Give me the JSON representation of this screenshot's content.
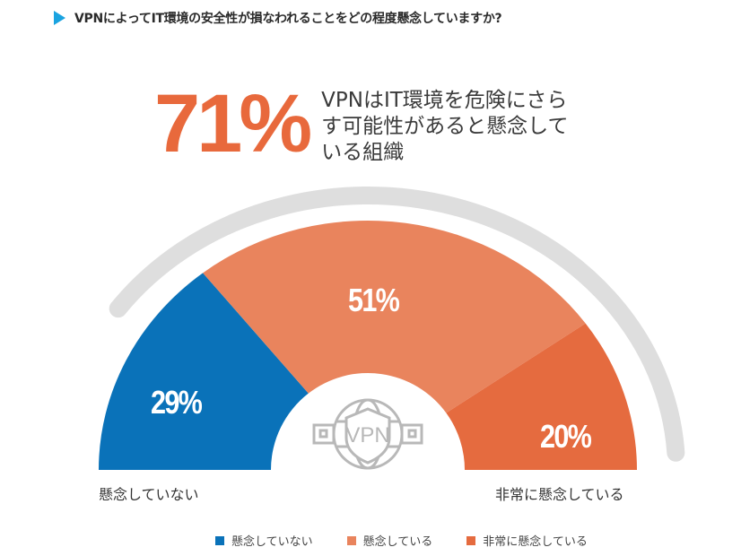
{
  "header": {
    "title": "VPNによってIT環境の安全性が損なわれることをどの程度懸念していますか?",
    "accent_color": "#1aa3e0"
  },
  "headline": {
    "percent": "71%",
    "description": "VPNはIT環境を危険にさらす可能性があると懸念している組織",
    "color": "#e8693c"
  },
  "labels": {
    "left": "懸念していない",
    "right": "非常に懸念している"
  },
  "center_icon": {
    "name": "vpn-globe-shield-icon",
    "text": "VPN"
  },
  "legend": [
    {
      "label": "懸念していない",
      "color": "#0a72b9"
    },
    {
      "label": "懸念している",
      "color": "#e9845d"
    },
    {
      "label": "非常に懸念している",
      "color": "#e56b3f"
    }
  ],
  "chart_data": {
    "type": "pie",
    "subtype": "semicircle-donut",
    "title": "VPNによってIT環境の安全性が損なわれることをどの程度懸念していますか?",
    "categories": [
      "懸念していない",
      "懸念している",
      "非常に懸念している"
    ],
    "values": [
      29,
      51,
      20
    ],
    "labels": [
      "29%",
      "51%",
      "20%"
    ],
    "colors": [
      "#0a72b9",
      "#e9845d",
      "#e56b3f"
    ],
    "annotation": "71% VPNはIT環境を危険にさらす可能性があると懸念している組織",
    "legend_position": "bottom"
  }
}
